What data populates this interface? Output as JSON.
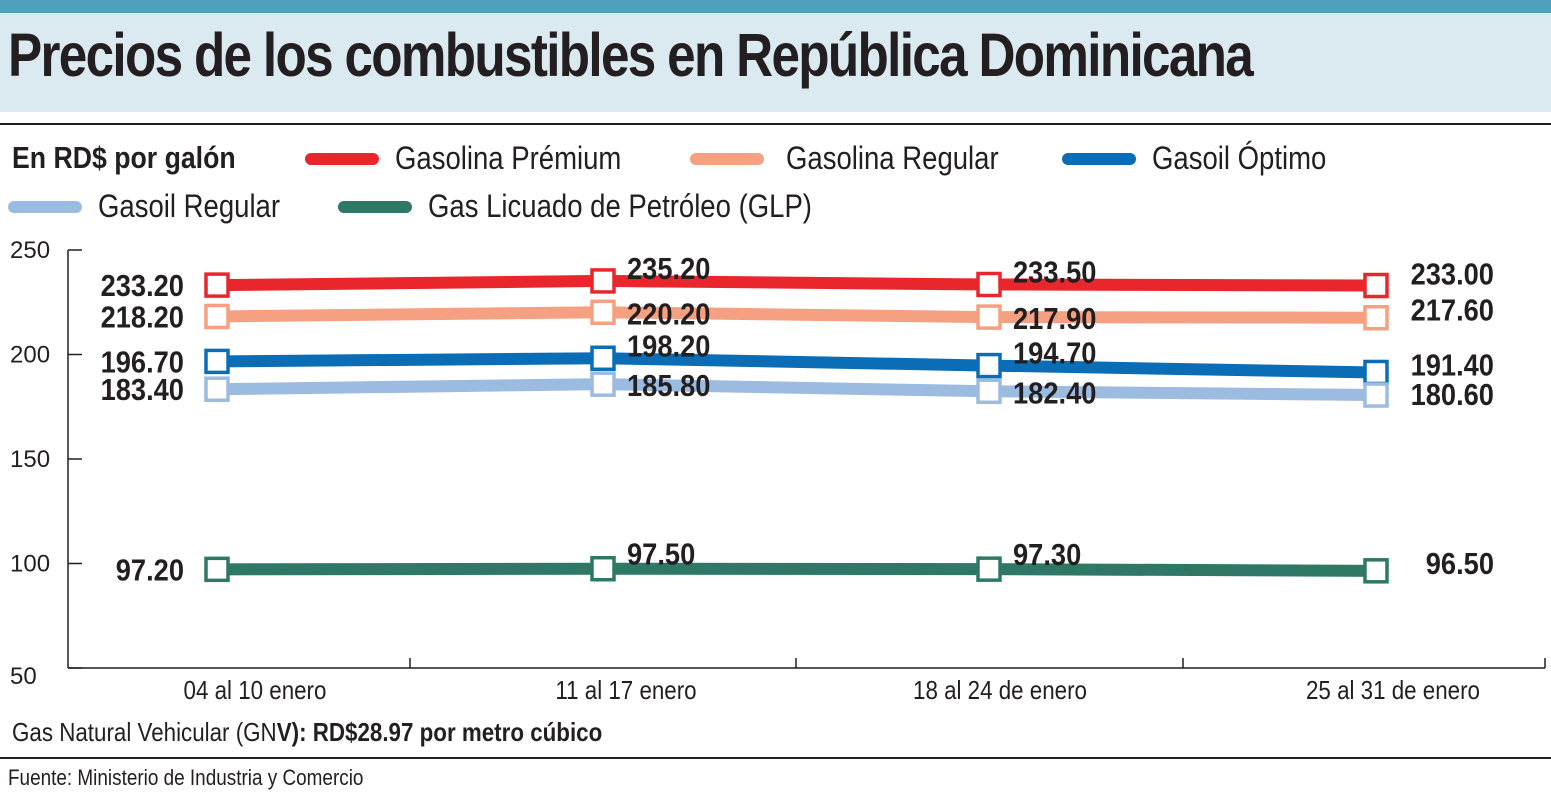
{
  "title": "Precios de los combustibles en República Dominicana",
  "colors": {
    "top_bar": "#4fa0bd",
    "title_band": "#dbe9f1",
    "gasolina_premium": "#e8262b",
    "gasolina_regular": "#f4a081",
    "gasoil_optimo": "#0c6db7",
    "gasoil_regular": "#9cbbe1",
    "glp": "#2e7865"
  },
  "legend": {
    "title": "En RD$ por galón",
    "items": [
      {
        "label": "Gasolina Prémium",
        "color": "#e8262b"
      },
      {
        "label": "Gasolina Regular",
        "color": "#f4a081"
      },
      {
        "label": "Gasoil Óptimo",
        "color": "#0c6db7"
      },
      {
        "label": "Gasoil Regular",
        "color": "#9cbbe1"
      },
      {
        "label": "Gas Licuado de Petróleo (GLP)",
        "color": "#2e7865"
      }
    ]
  },
  "chart_data": {
    "type": "line",
    "title": "Precios de los combustibles en República Dominicana",
    "ylabel": "En RD$ por galón",
    "xlabel": "",
    "categories": [
      "04 al 10 enero",
      "11 al 17 enero",
      "18 al 24 de enero",
      "25 al 31 de enero"
    ],
    "ylim": [
      50,
      250
    ],
    "yticks": [
      "50",
      "100",
      "150",
      "200",
      "250"
    ],
    "grid": false,
    "legend_position": "top",
    "series": [
      {
        "name": "Gasolina Prémium",
        "color": "#e8262b",
        "values": [
          233.2,
          235.2,
          233.5,
          233.0
        ],
        "labels": [
          "233.20",
          "235.20",
          "233.50",
          "233.00"
        ]
      },
      {
        "name": "Gasolina Regular",
        "color": "#f4a081",
        "values": [
          218.2,
          220.2,
          217.9,
          217.6
        ],
        "labels": [
          "218.20",
          "220.20",
          "217.90",
          "217.60"
        ]
      },
      {
        "name": "Gasoil Óptimo",
        "color": "#0c6db7",
        "values": [
          196.7,
          198.2,
          194.7,
          191.4
        ],
        "labels": [
          "196.70",
          "198.20",
          "194.70",
          "191.40"
        ]
      },
      {
        "name": "Gasoil Regular",
        "color": "#9cbbe1",
        "values": [
          183.4,
          185.8,
          182.4,
          180.6
        ],
        "labels": [
          "183.40",
          "185.80",
          "182.40",
          "180.60"
        ]
      },
      {
        "name": "Gas Licuado de Petróleo (GLP)",
        "color": "#2e7865",
        "values": [
          97.2,
          97.5,
          97.3,
          96.5
        ],
        "labels": [
          "97.20",
          "97.50",
          "97.30",
          "96.50"
        ]
      }
    ]
  },
  "note": {
    "prefix": "Gas Natural Vehicular (GN",
    "bold": "V): RD$28.97 por metro cúbico"
  },
  "source": "Fuente: Ministerio de Industria y Comercio"
}
